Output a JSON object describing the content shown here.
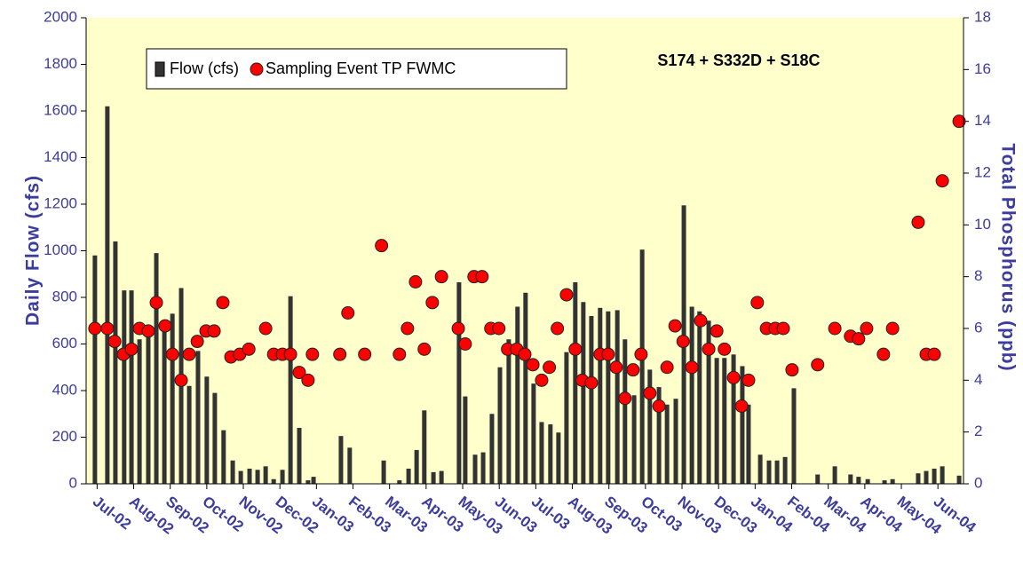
{
  "chart_data": {
    "type": "bar",
    "annotation": "S174 + S332D + S18C",
    "ylabel": "Daily Flow (cfs)",
    "y2label": "Total Phosphorus (ppb)",
    "ylim": [
      0,
      2000
    ],
    "yticks": [
      0,
      200,
      400,
      600,
      800,
      1000,
      1200,
      1400,
      1600,
      1800,
      2000
    ],
    "y2lim": [
      0,
      18
    ],
    "y2ticks": [
      0,
      2,
      4,
      6,
      8,
      10,
      12,
      14,
      16,
      18
    ],
    "xlim": [
      -0.3,
      23.7
    ],
    "xticks": [
      {
        "value": 0,
        "label": "Jul-02"
      },
      {
        "value": 1,
        "label": "Aug-02"
      },
      {
        "value": 2,
        "label": "Sep-02"
      },
      {
        "value": 3,
        "label": "Oct-02"
      },
      {
        "value": 4,
        "label": "Nov-02"
      },
      {
        "value": 5,
        "label": "Dec-02"
      },
      {
        "value": 6,
        "label": "Jan-03"
      },
      {
        "value": 7,
        "label": "Feb-03"
      },
      {
        "value": 8,
        "label": "Mar-03"
      },
      {
        "value": 9,
        "label": "Apr-03"
      },
      {
        "value": 10,
        "label": "May-03"
      },
      {
        "value": 11,
        "label": "Jun-03"
      },
      {
        "value": 12,
        "label": "Jul-03"
      },
      {
        "value": 13,
        "label": "Aug-03"
      },
      {
        "value": 14,
        "label": "Sep-03"
      },
      {
        "value": 15,
        "label": "Oct-03"
      },
      {
        "value": 16,
        "label": "Nov-03"
      },
      {
        "value": 17,
        "label": "Dec-03"
      },
      {
        "value": 18,
        "label": "Jan-04"
      },
      {
        "value": 19,
        "label": "Feb-04"
      },
      {
        "value": 20,
        "label": "Mar-04"
      },
      {
        "value": 21,
        "label": "Apr-04"
      },
      {
        "value": 22,
        "label": "May-04"
      },
      {
        "value": 23,
        "label": "Jun-04"
      }
    ],
    "legend": "upper left",
    "series": [
      {
        "name": "Flow (cfs)",
        "type": "bar",
        "color": "#333333",
        "x": [
          -0.06,
          0.28,
          0.5,
          0.74,
          0.94,
          1.16,
          1.4,
          1.62,
          1.84,
          2.06,
          2.3,
          2.52,
          2.76,
          3.0,
          3.22,
          3.46,
          3.71,
          3.93,
          4.17,
          4.39,
          4.61,
          4.83,
          5.07,
          5.29,
          5.53,
          5.77,
          5.92,
          6.67,
          6.91,
          7.84,
          8.27,
          8.52,
          8.74,
          8.95,
          9.2,
          9.42,
          9.9,
          10.07,
          10.34,
          10.56,
          10.8,
          11.02,
          11.26,
          11.5,
          11.72,
          11.94,
          12.16,
          12.4,
          12.62,
          12.84,
          13.08,
          13.3,
          13.52,
          13.76,
          13.98,
          14.23,
          14.44,
          14.69,
          14.91,
          15.12,
          15.37,
          15.59,
          15.83,
          16.05,
          16.27,
          16.48,
          16.73,
          16.95,
          17.16,
          17.41,
          17.65,
          17.82,
          18.14,
          18.38,
          18.6,
          18.82,
          19.06,
          19.71,
          20.18,
          20.61,
          20.83,
          21.08,
          21.54,
          21.76,
          22.46,
          22.68,
          22.9,
          23.12,
          23.58
        ],
        "values": [
          980,
          1620,
          1040,
          830,
          830,
          620,
          680,
          990,
          690,
          730,
          840,
          420,
          570,
          460,
          390,
          230,
          100,
          55,
          65,
          60,
          75,
          20,
          60,
          805,
          240,
          15,
          30,
          205,
          155,
          100,
          15,
          65,
          145,
          315,
          50,
          55,
          865,
          375,
          125,
          135,
          300,
          500,
          620,
          760,
          820,
          430,
          265,
          255,
          220,
          565,
          865,
          780,
          720,
          755,
          740,
          745,
          620,
          380,
          1005,
          490,
          415,
          340,
          365,
          1195,
          760,
          740,
          700,
          540,
          540,
          555,
          505,
          340,
          125,
          100,
          100,
          115,
          410,
          40,
          75,
          40,
          30,
          20,
          15,
          20,
          45,
          55,
          65,
          75,
          35
        ]
      },
      {
        "name": "Sampling Event TP FWMC",
        "type": "scatter",
        "axis": "y2",
        "color": "#ff0000",
        "x": [
          -0.06,
          0.28,
          0.48,
          0.72,
          0.94,
          1.16,
          1.4,
          1.62,
          1.86,
          2.06,
          2.3,
          2.52,
          2.74,
          2.98,
          3.2,
          3.44,
          3.66,
          3.9,
          4.15,
          4.61,
          4.83,
          5.07,
          5.29,
          5.53,
          5.77,
          5.89,
          6.64,
          6.86,
          7.32,
          7.78,
          8.27,
          8.49,
          8.71,
          8.95,
          9.17,
          9.42,
          9.88,
          10.07,
          10.31,
          10.53,
          10.77,
          10.99,
          11.23,
          11.48,
          11.7,
          11.92,
          12.16,
          12.37,
          12.59,
          12.84,
          13.08,
          13.27,
          13.52,
          13.76,
          13.98,
          14.2,
          14.44,
          14.66,
          14.88,
          15.12,
          15.37,
          15.59,
          15.81,
          16.03,
          16.27,
          16.51,
          16.73,
          16.95,
          17.16,
          17.41,
          17.63,
          17.82,
          18.06,
          18.31,
          18.55,
          18.77,
          19.01,
          19.71,
          20.18,
          20.61,
          20.83,
          21.05,
          21.51,
          21.76,
          22.46,
          22.68,
          22.9,
          23.12,
          23.58
        ],
        "values": [
          6.0,
          6.0,
          5.5,
          5.0,
          5.2,
          6.0,
          5.9,
          7.0,
          6.1,
          5.0,
          4.0,
          5.0,
          5.5,
          5.9,
          5.9,
          7.0,
          4.9,
          5.0,
          5.2,
          6.0,
          5.0,
          5.0,
          5.0,
          4.3,
          4.0,
          5.0,
          5.0,
          6.6,
          5.0,
          9.2,
          5.0,
          6.0,
          7.8,
          5.2,
          7.0,
          8.0,
          6.0,
          5.4,
          8.0,
          8.0,
          6.0,
          6.0,
          5.2,
          5.2,
          5.0,
          4.6,
          4.0,
          4.5,
          6.0,
          7.3,
          5.2,
          4.0,
          3.9,
          5.0,
          5.0,
          4.5,
          3.3,
          4.4,
          5.0,
          3.5,
          3.0,
          4.5,
          6.1,
          5.5,
          4.5,
          6.3,
          5.2,
          5.9,
          5.2,
          4.1,
          3.0,
          4.0,
          7.0,
          6.0,
          6.0,
          6.0,
          4.4,
          4.6,
          6.0,
          5.7,
          5.6,
          6.0,
          5.0,
          6.0,
          10.1,
          5.0,
          5.0,
          11.7,
          14.0
        ]
      }
    ]
  }
}
